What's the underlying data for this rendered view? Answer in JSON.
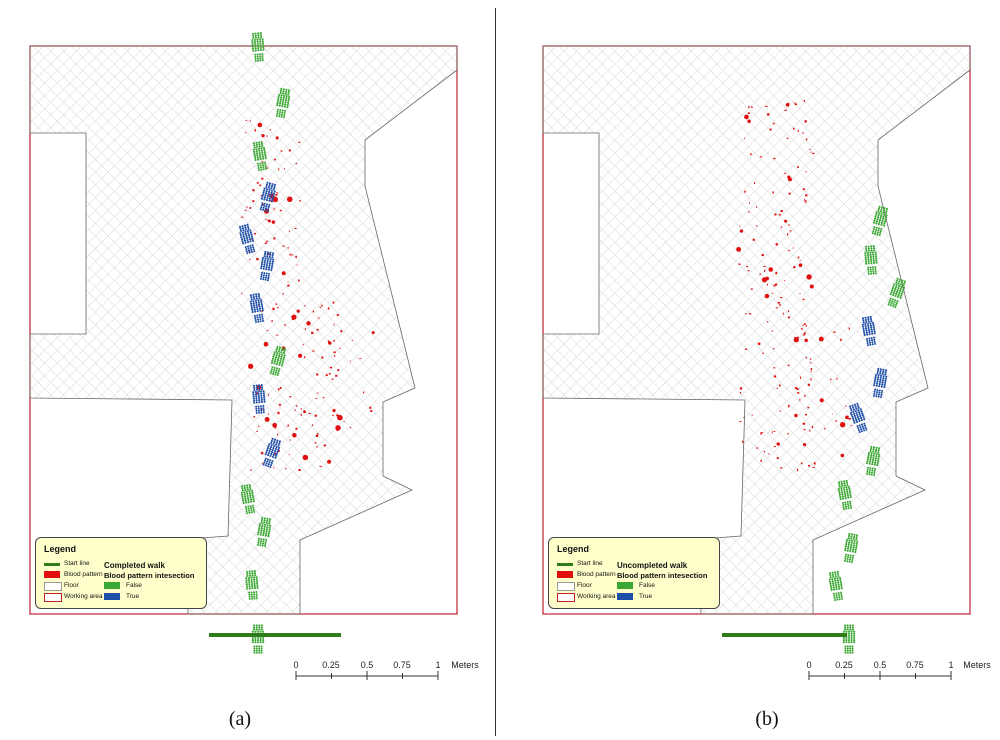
{
  "panels": [
    {
      "caption": "(a)",
      "legend": {
        "title": "Legend",
        "start_line": "Start line",
        "blood_pattern": "Blood pattern",
        "floor": "Floor",
        "working_area": "Working area",
        "walk_title": "Completed walk",
        "intersection_title": "Blood pattern intesection",
        "false_label": "False",
        "true_label": "True"
      },
      "scale": {
        "ticks": [
          "0",
          "0.25",
          "0.5",
          "0.75",
          "1"
        ],
        "unit": "Meters"
      }
    },
    {
      "caption": "(b)",
      "legend": {
        "title": "Legend",
        "start_line": "Start line",
        "blood_pattern": "Blood pattern",
        "floor": "Floor",
        "working_area": "Working area",
        "walk_title": "Uncompleted walk",
        "intersection_title": "Blood pattern intesection",
        "false_label": "False",
        "true_label": "True"
      },
      "scale": {
        "ticks": [
          "0",
          "0.25",
          "0.5",
          "0.75",
          "1"
        ],
        "unit": "Meters"
      }
    }
  ],
  "colors": {
    "start_line": "#2e7d1a",
    "blood": "#e01010",
    "false": "#3aa832",
    "true": "#1f4fa8",
    "working_area": "#c0202a",
    "floor_hatch": "#c8c8c8",
    "legend_bg": "#ffffcc"
  }
}
